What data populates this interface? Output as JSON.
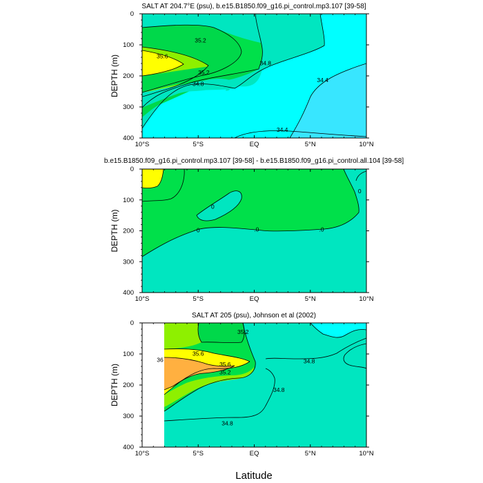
{
  "figure": {
    "xlabel": "Latitude"
  },
  "colors": {
    "level_34_4_below": "#38e6ff",
    "level_34_4_34_8": "#00ffff",
    "level_34_8_35_2": "#00e6c0",
    "level_35_2_35_6_dark": "#00d84a",
    "level_35_2_35_6": "#00e04a",
    "level_35_6_36": "#8ef000",
    "level_36_up": "#ffff00",
    "level_36_4_up": "#ffb040",
    "diff_negative": "#00e6c0",
    "diff_positive": "#00e04a",
    "diff_large": "#ffff00",
    "no_data": "#ffffff"
  },
  "chart_data": [
    {
      "type": "heatmap",
      "title": "SALT AT 204.7°E (psu), b.e15.B1850.f09_g16.pi_control.mp3.107 [39-58]",
      "xlabel": "",
      "ylabel": "DEPTH (m)",
      "x_ticks": [
        "10°S",
        "5°S",
        "EQ",
        "5°N",
        "10°N"
      ],
      "y_ticks": [
        "0",
        "100",
        "200",
        "300",
        "400"
      ],
      "xlim": [
        -10,
        10
      ],
      "ylim": [
        400,
        0
      ],
      "contour_levels": [
        34.4,
        34.8,
        35.2,
        35.6
      ],
      "contour_labels": [
        {
          "text": "35.2",
          "lat": -4.8,
          "depth": 92
        },
        {
          "text": "35.6",
          "lat": -8.2,
          "depth": 143
        },
        {
          "text": "34.8",
          "lat": 1.0,
          "depth": 165
        },
        {
          "text": "35.2",
          "lat": -4.5,
          "depth": 195
        },
        {
          "text": "34.8",
          "lat": -5.0,
          "depth": 232
        },
        {
          "text": "34.4",
          "lat": 6.1,
          "depth": 220
        },
        {
          "text": "34.4",
          "lat": 2.5,
          "depth": 380
        }
      ]
    },
    {
      "type": "heatmap",
      "title": "b.e15.B1850.f09_g16.pi_control.mp3.107 [39-58] - b.e15.B1850.f09_g16.pi_control.all.104 [39-58]",
      "xlabel": "",
      "ylabel": "DEPTH (m)",
      "x_ticks": [
        "10°S",
        "5°S",
        "EQ",
        "5°N",
        "10°N"
      ],
      "y_ticks": [
        "0",
        "100",
        "200",
        "300",
        "400"
      ],
      "xlim": [
        -10,
        10
      ],
      "ylim": [
        400,
        0
      ],
      "contour_levels": [
        0
      ],
      "contour_labels": [
        {
          "text": "0",
          "lat": -3.7,
          "depth": 128
        },
        {
          "text": "0",
          "lat": 9.4,
          "depth": 78
        },
        {
          "text": "0",
          "lat": -5.0,
          "depth": 205
        },
        {
          "text": ".0",
          "lat": 0.2,
          "depth": 202
        },
        {
          "text": ".0",
          "lat": 6.0,
          "depth": 202
        }
      ]
    },
    {
      "type": "heatmap",
      "title": "SALT AT 205 (psu), Johnson et al (2002)",
      "xlabel": "",
      "ylabel": "DEPTH (m)",
      "x_ticks": [
        "10°S",
        "5°S",
        "EQ",
        "5°N",
        "10°N"
      ],
      "y_ticks": [
        "0",
        "100",
        "200",
        "300",
        "400"
      ],
      "xlim": [
        -10,
        10
      ],
      "ylim": [
        400,
        0
      ],
      "data_lat_range": [
        -8,
        10
      ],
      "contour_levels": [
        34.8,
        35.2,
        35.6,
        36.0
      ],
      "contour_labels": [
        {
          "text": "35.2",
          "lat": -1.0,
          "depth": 35
        },
        {
          "text": "35.6",
          "lat": -5.0,
          "depth": 105
        },
        {
          "text": "36",
          "lat": -8.4,
          "depth": 125
        },
        {
          "text": "35.6",
          "lat": -2.6,
          "depth": 140
        },
        {
          "text": "35.2",
          "lat": -2.6,
          "depth": 165
        },
        {
          "text": "34.8",
          "lat": 4.9,
          "depth": 130
        },
        {
          "text": "34.8",
          "lat": 2.2,
          "depth": 222
        },
        {
          "text": "34.8",
          "lat": -2.4,
          "depth": 330
        }
      ]
    }
  ]
}
